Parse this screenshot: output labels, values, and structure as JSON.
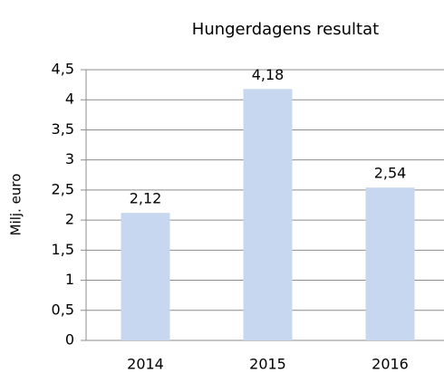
{
  "chart_data": {
    "type": "bar",
    "title": "Hungerdagens resultat",
    "y_label": "Milj. euro",
    "categories": [
      "2014",
      "2015",
      "2016"
    ],
    "values": [
      2.12,
      4.18,
      2.54
    ],
    "value_labels": [
      "2,12",
      "4,18",
      "2,54"
    ],
    "color": "#c6d7ef",
    "ylim": [
      0,
      4.5
    ],
    "yticks": [
      0,
      {
        "value": 0.5,
        "label": "0,5"
      },
      1,
      {
        "value": 1.5,
        "label": "1,5"
      },
      2,
      {
        "value": 2.5,
        "label": "2,5"
      },
      3,
      {
        "value": 3.5,
        "label": "3,5"
      },
      4,
      {
        "value": 4.5,
        "label": "4,5"
      }
    ],
    "grid": true
  }
}
